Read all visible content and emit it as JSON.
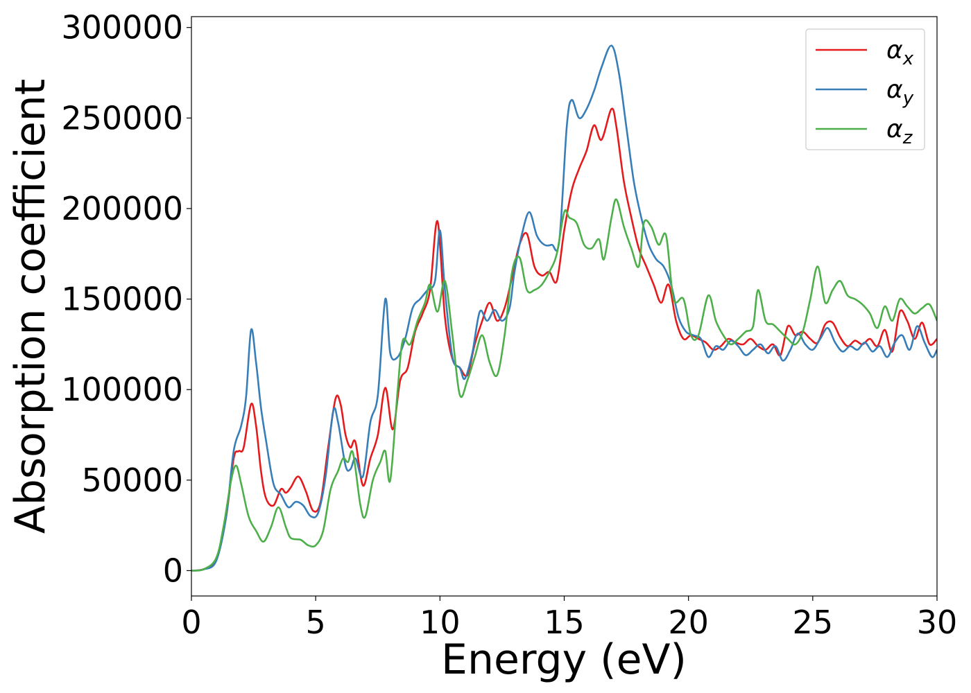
{
  "chart_data": {
    "type": "line",
    "xlabel": "Energy (eV)",
    "ylabel": "Absorption coefficient",
    "xlim": [
      0,
      30
    ],
    "ylim": [
      -14000,
      306000
    ],
    "xticks": [
      0,
      5,
      10,
      15,
      20,
      25,
      30
    ],
    "yticks": [
      0,
      50000,
      100000,
      150000,
      200000,
      250000,
      300000
    ],
    "grid": false,
    "legend_position": "top-right",
    "series": [
      {
        "name": "α",
        "subscript": "x",
        "color": "#e41a1c",
        "points": [
          [
            0,
            0
          ],
          [
            0.5,
            800
          ],
          [
            1.0,
            6000
          ],
          [
            1.4,
            30000
          ],
          [
            1.7,
            62000
          ],
          [
            1.9,
            66000
          ],
          [
            2.1,
            68000
          ],
          [
            2.4,
            92000
          ],
          [
            2.6,
            80000
          ],
          [
            2.8,
            55000
          ],
          [
            3.0,
            40000
          ],
          [
            3.3,
            36000
          ],
          [
            3.6,
            45000
          ],
          [
            3.8,
            43000
          ],
          [
            4.0,
            46000
          ],
          [
            4.3,
            52000
          ],
          [
            4.6,
            44000
          ],
          [
            4.9,
            33000
          ],
          [
            5.2,
            38000
          ],
          [
            5.5,
            68000
          ],
          [
            5.8,
            95000
          ],
          [
            6.0,
            92000
          ],
          [
            6.2,
            75000
          ],
          [
            6.4,
            68000
          ],
          [
            6.6,
            71000
          ],
          [
            6.9,
            47000
          ],
          [
            7.2,
            62000
          ],
          [
            7.5,
            75000
          ],
          [
            7.8,
            101000
          ],
          [
            8.1,
            78000
          ],
          [
            8.4,
            105000
          ],
          [
            8.7,
            112000
          ],
          [
            9.0,
            132000
          ],
          [
            9.3,
            142000
          ],
          [
            9.6,
            155000
          ],
          [
            9.9,
            193000
          ],
          [
            10.2,
            140000
          ],
          [
            10.5,
            117000
          ],
          [
            10.8,
            112000
          ],
          [
            11.1,
            108000
          ],
          [
            11.4,
            125000
          ],
          [
            11.7,
            138000
          ],
          [
            12.0,
            148000
          ],
          [
            12.3,
            138000
          ],
          [
            12.6,
            145000
          ],
          [
            12.9,
            162000
          ],
          [
            13.2,
            180000
          ],
          [
            13.5,
            186000
          ],
          [
            13.8,
            168000
          ],
          [
            14.1,
            163000
          ],
          [
            14.4,
            165000
          ],
          [
            14.7,
            160000
          ],
          [
            15.0,
            188000
          ],
          [
            15.3,
            210000
          ],
          [
            15.6,
            222000
          ],
          [
            15.9,
            232000
          ],
          [
            16.2,
            246000
          ],
          [
            16.5,
            238000
          ],
          [
            16.9,
            255000
          ],
          [
            17.1,
            245000
          ],
          [
            17.4,
            215000
          ],
          [
            17.7,
            195000
          ],
          [
            18.0,
            178000
          ],
          [
            18.3,
            168000
          ],
          [
            18.6,
            158000
          ],
          [
            18.9,
            148000
          ],
          [
            19.2,
            158000
          ],
          [
            19.5,
            138000
          ],
          [
            19.8,
            128000
          ],
          [
            20.1,
            130000
          ],
          [
            20.4,
            128000
          ],
          [
            20.7,
            126000
          ],
          [
            21.0,
            122000
          ],
          [
            21.3,
            124000
          ],
          [
            21.6,
            128000
          ],
          [
            21.9,
            126000
          ],
          [
            22.2,
            125000
          ],
          [
            22.5,
            128000
          ],
          [
            22.8,
            124000
          ],
          [
            23.1,
            122000
          ],
          [
            23.4,
            125000
          ],
          [
            23.7,
            119000
          ],
          [
            24.0,
            135000
          ],
          [
            24.3,
            130000
          ],
          [
            24.6,
            132000
          ],
          [
            24.9,
            128000
          ],
          [
            25.2,
            126000
          ],
          [
            25.5,
            136000
          ],
          [
            25.8,
            137000
          ],
          [
            26.1,
            129000
          ],
          [
            26.4,
            124000
          ],
          [
            26.7,
            127000
          ],
          [
            27.0,
            125000
          ],
          [
            27.3,
            128000
          ],
          [
            27.6,
            124000
          ],
          [
            27.9,
            133000
          ],
          [
            28.2,
            121000
          ],
          [
            28.5,
            143000
          ],
          [
            28.8,
            138000
          ],
          [
            29.1,
            128000
          ],
          [
            29.4,
            137000
          ],
          [
            29.7,
            125000
          ],
          [
            30.0,
            128000
          ]
        ]
      },
      {
        "name": "α",
        "subscript": "y",
        "color": "#377eb8",
        "points": [
          [
            0,
            0
          ],
          [
            0.5,
            700
          ],
          [
            1.0,
            5500
          ],
          [
            1.4,
            30000
          ],
          [
            1.7,
            66000
          ],
          [
            2.0,
            80000
          ],
          [
            2.2,
            96000
          ],
          [
            2.4,
            133000
          ],
          [
            2.6,
            115000
          ],
          [
            2.8,
            90000
          ],
          [
            3.0,
            72000
          ],
          [
            3.3,
            48000
          ],
          [
            3.6,
            42000
          ],
          [
            3.9,
            35000
          ],
          [
            4.2,
            38000
          ],
          [
            4.5,
            36000
          ],
          [
            4.8,
            30000
          ],
          [
            5.1,
            32000
          ],
          [
            5.4,
            52000
          ],
          [
            5.7,
            88000
          ],
          [
            5.9,
            82000
          ],
          [
            6.2,
            58000
          ],
          [
            6.4,
            56000
          ],
          [
            6.6,
            62000
          ],
          [
            6.9,
            52000
          ],
          [
            7.2,
            82000
          ],
          [
            7.5,
            97000
          ],
          [
            7.8,
            150000
          ],
          [
            8.0,
            120000
          ],
          [
            8.3,
            118000
          ],
          [
            8.6,
            128000
          ],
          [
            8.9,
            145000
          ],
          [
            9.2,
            150000
          ],
          [
            9.5,
            155000
          ],
          [
            9.8,
            160000
          ],
          [
            10.0,
            188000
          ],
          [
            10.2,
            155000
          ],
          [
            10.5,
            118000
          ],
          [
            10.8,
            112000
          ],
          [
            11.0,
            106000
          ],
          [
            11.3,
            120000
          ],
          [
            11.6,
            143000
          ],
          [
            11.9,
            138000
          ],
          [
            12.2,
            144000
          ],
          [
            12.5,
            138000
          ],
          [
            12.8,
            145000
          ],
          [
            13.0,
            165000
          ],
          [
            13.3,
            186000
          ],
          [
            13.6,
            198000
          ],
          [
            13.9,
            185000
          ],
          [
            14.2,
            180000
          ],
          [
            14.5,
            180000
          ],
          [
            14.8,
            182000
          ],
          [
            15.1,
            245000
          ],
          [
            15.3,
            260000
          ],
          [
            15.6,
            250000
          ],
          [
            15.9,
            255000
          ],
          [
            16.2,
            265000
          ],
          [
            16.5,
            278000
          ],
          [
            16.9,
            290000
          ],
          [
            17.2,
            275000
          ],
          [
            17.5,
            245000
          ],
          [
            17.8,
            215000
          ],
          [
            18.1,
            195000
          ],
          [
            18.4,
            180000
          ],
          [
            18.7,
            172000
          ],
          [
            19.0,
            168000
          ],
          [
            19.3,
            158000
          ],
          [
            19.6,
            140000
          ],
          [
            19.9,
            132000
          ],
          [
            20.2,
            130000
          ],
          [
            20.5,
            128000
          ],
          [
            20.8,
            118000
          ],
          [
            21.1,
            124000
          ],
          [
            21.4,
            122000
          ],
          [
            21.7,
            127000
          ],
          [
            22.0,
            124000
          ],
          [
            22.3,
            119000
          ],
          [
            22.6,
            122000
          ],
          [
            22.9,
            125000
          ],
          [
            23.2,
            120000
          ],
          [
            23.5,
            124000
          ],
          [
            23.8,
            116000
          ],
          [
            24.1,
            122000
          ],
          [
            24.4,
            131000
          ],
          [
            24.7,
            125000
          ],
          [
            25.0,
            122000
          ],
          [
            25.3,
            128000
          ],
          [
            25.6,
            134000
          ],
          [
            25.9,
            126000
          ],
          [
            26.2,
            121000
          ],
          [
            26.5,
            124000
          ],
          [
            26.8,
            122000
          ],
          [
            27.1,
            126000
          ],
          [
            27.4,
            121000
          ],
          [
            27.7,
            124000
          ],
          [
            28.0,
            118000
          ],
          [
            28.3,
            126000
          ],
          [
            28.6,
            130000
          ],
          [
            28.9,
            122000
          ],
          [
            29.2,
            135000
          ],
          [
            29.5,
            126000
          ],
          [
            29.8,
            118000
          ],
          [
            30.0,
            122000
          ]
        ]
      },
      {
        "name": "α",
        "subscript": "z",
        "color": "#4daf4a",
        "points": [
          [
            0,
            0
          ],
          [
            0.5,
            800
          ],
          [
            1.0,
            7000
          ],
          [
            1.3,
            25000
          ],
          [
            1.6,
            50000
          ],
          [
            1.8,
            58000
          ],
          [
            2.0,
            48000
          ],
          [
            2.3,
            30000
          ],
          [
            2.6,
            22000
          ],
          [
            2.9,
            16000
          ],
          [
            3.2,
            24000
          ],
          [
            3.5,
            35000
          ],
          [
            3.8,
            24000
          ],
          [
            4.0,
            18000
          ],
          [
            4.4,
            17000
          ],
          [
            4.7,
            14000
          ],
          [
            5.0,
            14000
          ],
          [
            5.3,
            22000
          ],
          [
            5.6,
            45000
          ],
          [
            5.9,
            55000
          ],
          [
            6.1,
            62000
          ],
          [
            6.3,
            60000
          ],
          [
            6.5,
            65000
          ],
          [
            6.8,
            36000
          ],
          [
            7.0,
            30000
          ],
          [
            7.3,
            50000
          ],
          [
            7.6,
            60000
          ],
          [
            7.8,
            66000
          ],
          [
            8.0,
            50000
          ],
          [
            8.3,
            100000
          ],
          [
            8.5,
            127000
          ],
          [
            8.8,
            125000
          ],
          [
            9.1,
            138000
          ],
          [
            9.4,
            148000
          ],
          [
            9.6,
            158000
          ],
          [
            9.9,
            143000
          ],
          [
            10.2,
            160000
          ],
          [
            10.5,
            130000
          ],
          [
            10.8,
            97000
          ],
          [
            11.1,
            105000
          ],
          [
            11.4,
            118000
          ],
          [
            11.7,
            130000
          ],
          [
            12.0,
            115000
          ],
          [
            12.3,
            108000
          ],
          [
            12.6,
            130000
          ],
          [
            12.9,
            165000
          ],
          [
            13.2,
            173000
          ],
          [
            13.5,
            155000
          ],
          [
            13.8,
            155000
          ],
          [
            14.1,
            158000
          ],
          [
            14.4,
            165000
          ],
          [
            14.7,
            175000
          ],
          [
            15.0,
            198000
          ],
          [
            15.2,
            195000
          ],
          [
            15.5,
            192000
          ],
          [
            15.8,
            180000
          ],
          [
            16.1,
            178000
          ],
          [
            16.4,
            183000
          ],
          [
            16.6,
            172000
          ],
          [
            16.9,
            195000
          ],
          [
            17.1,
            205000
          ],
          [
            17.4,
            190000
          ],
          [
            17.7,
            178000
          ],
          [
            18.0,
            168000
          ],
          [
            18.2,
            192000
          ],
          [
            18.5,
            190000
          ],
          [
            18.8,
            180000
          ],
          [
            19.1,
            185000
          ],
          [
            19.4,
            150000
          ],
          [
            19.8,
            150000
          ],
          [
            20.1,
            130000
          ],
          [
            20.4,
            130000
          ],
          [
            20.8,
            152000
          ],
          [
            21.1,
            138000
          ],
          [
            21.4,
            130000
          ],
          [
            21.7,
            125000
          ],
          [
            22.0,
            128000
          ],
          [
            22.3,
            132000
          ],
          [
            22.6,
            135000
          ],
          [
            22.8,
            155000
          ],
          [
            23.1,
            138000
          ],
          [
            23.4,
            136000
          ],
          [
            23.7,
            132000
          ],
          [
            24.0,
            128000
          ],
          [
            24.3,
            125000
          ],
          [
            24.6,
            132000
          ],
          [
            24.9,
            150000
          ],
          [
            25.2,
            168000
          ],
          [
            25.5,
            148000
          ],
          [
            25.8,
            155000
          ],
          [
            26.1,
            160000
          ],
          [
            26.4,
            152000
          ],
          [
            26.7,
            150000
          ],
          [
            27.0,
            147000
          ],
          [
            27.3,
            142000
          ],
          [
            27.6,
            134000
          ],
          [
            27.9,
            146000
          ],
          [
            28.2,
            138000
          ],
          [
            28.5,
            150000
          ],
          [
            28.8,
            146000
          ],
          [
            29.1,
            142000
          ],
          [
            29.4,
            145000
          ],
          [
            29.7,
            147000
          ],
          [
            30.0,
            138000
          ]
        ]
      }
    ]
  }
}
